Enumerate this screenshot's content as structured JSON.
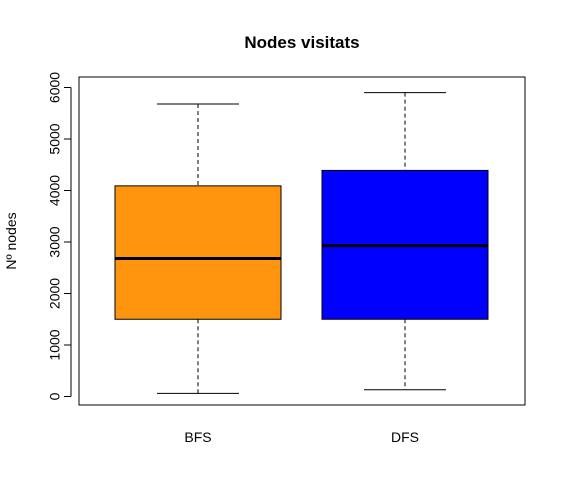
{
  "chart_data": {
    "type": "boxplot",
    "title": "Nodes visitats",
    "xlabel": "",
    "ylabel": "Nº nodes",
    "ylim": [
      -150,
      6150
    ],
    "yticks": [
      0,
      1000,
      2000,
      3000,
      4000,
      5000,
      6000
    ],
    "categories": [
      "BFS",
      "DFS"
    ],
    "series": [
      {
        "category": "BFS",
        "min": 60,
        "q1": 1500,
        "median": 2680,
        "q3": 4090,
        "max": 5680,
        "color": "#FF950F"
      },
      {
        "category": "DFS",
        "min": 130,
        "q1": 1500,
        "median": 2930,
        "q3": 4390,
        "max": 5900,
        "color": "#0000FF"
      }
    ],
    "grid": false,
    "legend": "none"
  }
}
